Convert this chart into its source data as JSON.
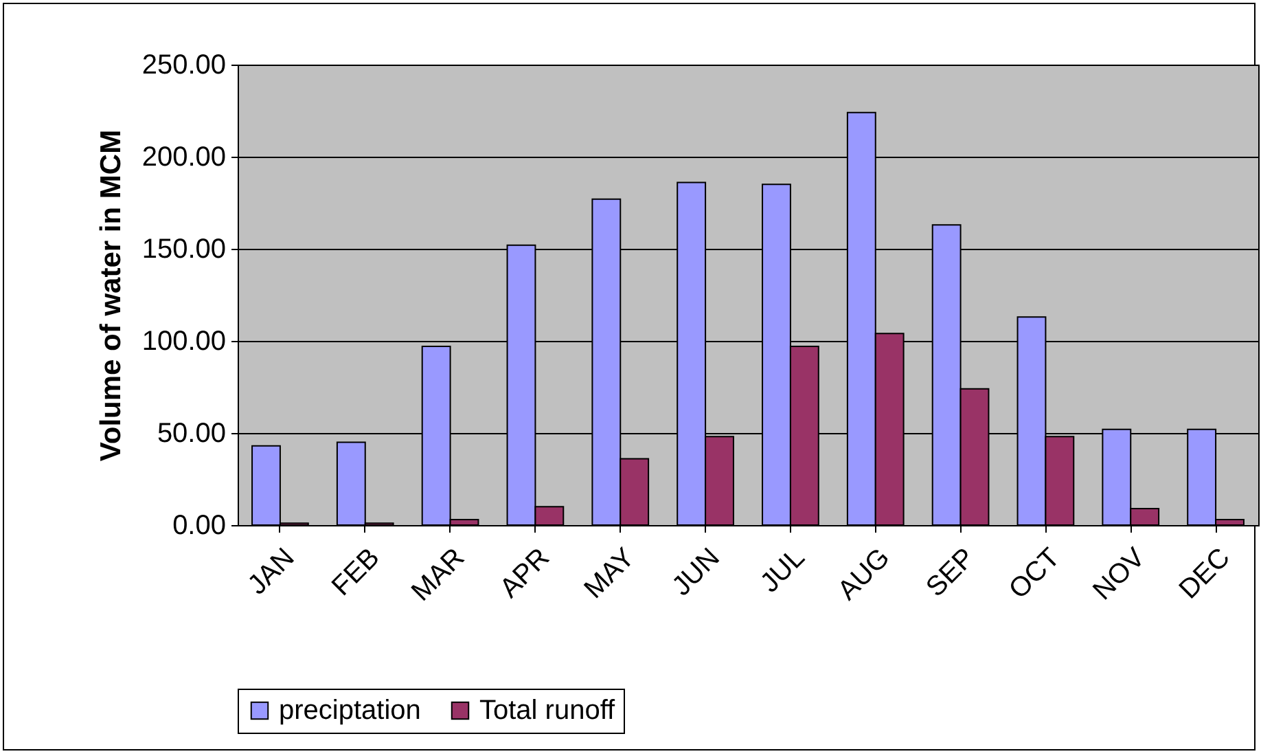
{
  "chart_data": {
    "type": "bar",
    "ylabel": "Volume of water in MCM",
    "categories": [
      "JAN",
      "FEB",
      "MAR",
      "APR",
      "MAY",
      "JUN",
      "JUL",
      "AUG",
      "SEP",
      "OCT",
      "NOV",
      "DEC"
    ],
    "series": [
      {
        "name": "preciptation",
        "color": "#9999ff",
        "values": [
          43,
          45,
          97,
          152,
          177,
          186,
          185,
          224,
          163,
          113,
          52,
          52
        ]
      },
      {
        "name": "Total runoff",
        "color": "#993366",
        "values": [
          1,
          1,
          3,
          10,
          36,
          48,
          97,
          104,
          74,
          48,
          9,
          3
        ]
      }
    ],
    "ylim": [
      0,
      250
    ],
    "yticks": [
      {
        "value": 0,
        "label": "0.00"
      },
      {
        "value": 50,
        "label": "50.00"
      },
      {
        "value": 100,
        "label": "100.00"
      },
      {
        "value": 150,
        "label": "150.00"
      },
      {
        "value": 200,
        "label": "200.00"
      },
      {
        "value": 250,
        "label": "250.00"
      }
    ],
    "grid": "y",
    "legend": "bottom"
  }
}
